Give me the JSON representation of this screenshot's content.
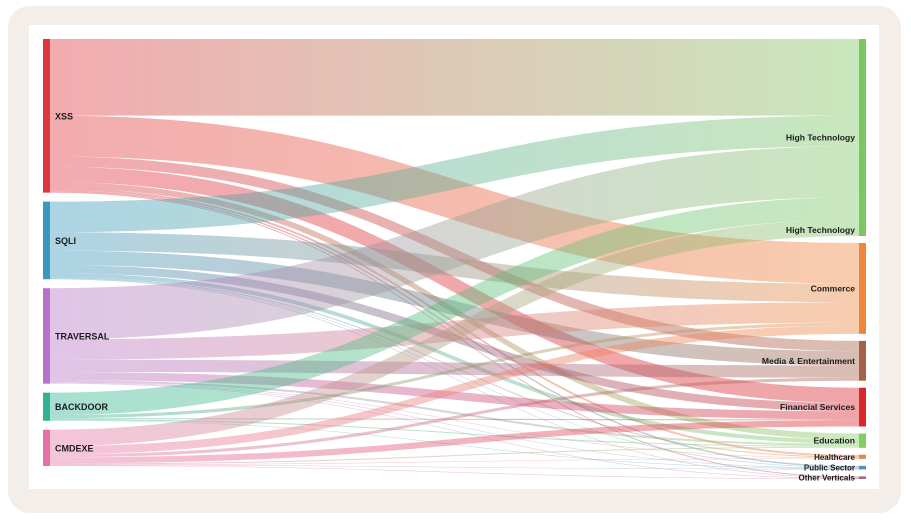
{
  "sankey": {
    "sources": [
      {
        "id": "xss",
        "label": "XSS",
        "color": "#e0373f"
      },
      {
        "id": "sqli",
        "label": "SQLI",
        "color": "#3a98be"
      },
      {
        "id": "traversal",
        "label": "TRAVERSAL",
        "color": "#b873c9"
      },
      {
        "id": "backdoor",
        "label": "BACKDOOR",
        "color": "#2fb393"
      },
      {
        "id": "cmdexe",
        "label": "CMDEXE",
        "color": "#e672a5"
      }
    ],
    "targets": [
      {
        "id": "hightech",
        "label": "High Technology",
        "label2": "High Technology",
        "color": "#7dc762"
      },
      {
        "id": "commerce",
        "label": "Commerce",
        "color": "#ee863e"
      },
      {
        "id": "media",
        "label": "Media & Entertainment",
        "color": "#a46149"
      },
      {
        "id": "financial",
        "label": "Financial Services",
        "color": "#d8282e"
      },
      {
        "id": "education",
        "label": "Education",
        "color": "#83cd64"
      },
      {
        "id": "healthcare",
        "label": "Healthcare",
        "color": "#e7844a"
      },
      {
        "id": "public",
        "label": "Public Sector",
        "color": "#4e95c2"
      },
      {
        "id": "other",
        "label": "Other Verticals",
        "color": "#b05f84"
      }
    ],
    "links": [
      {
        "source": "xss",
        "target": "hightech",
        "value": 75
      },
      {
        "source": "xss",
        "target": "commerce",
        "value": 40
      },
      {
        "source": "xss",
        "target": "financial",
        "value": 15
      },
      {
        "source": "xss",
        "target": "media",
        "value": 10
      },
      {
        "source": "xss",
        "target": "education",
        "value": 6
      },
      {
        "source": "xss",
        "target": "healthcare",
        "value": 2
      },
      {
        "source": "xss",
        "target": "public",
        "value": 1.5
      },
      {
        "source": "xss",
        "target": "other",
        "value": 1
      },
      {
        "source": "sqli",
        "target": "hightech",
        "value": 30
      },
      {
        "source": "sqli",
        "target": "commerce",
        "value": 18
      },
      {
        "source": "sqli",
        "target": "media",
        "value": 14
      },
      {
        "source": "sqli",
        "target": "financial",
        "value": 8
      },
      {
        "source": "sqli",
        "target": "education",
        "value": 4
      },
      {
        "source": "sqli",
        "target": "healthcare",
        "value": 1
      },
      {
        "source": "sqli",
        "target": "public",
        "value": 0.5
      },
      {
        "source": "sqli",
        "target": "other",
        "value": 0.5
      },
      {
        "source": "traversal",
        "target": "hightech",
        "value": 50
      },
      {
        "source": "traversal",
        "target": "commerce",
        "value": 20
      },
      {
        "source": "traversal",
        "target": "media",
        "value": 12
      },
      {
        "source": "traversal",
        "target": "financial",
        "value": 8
      },
      {
        "source": "traversal",
        "target": "education",
        "value": 2
      },
      {
        "source": "traversal",
        "target": "healthcare",
        "value": 0.5
      },
      {
        "source": "traversal",
        "target": "public",
        "value": 0.5
      },
      {
        "source": "traversal",
        "target": "other",
        "value": 0.5
      },
      {
        "source": "backdoor",
        "target": "hightech",
        "value": 22
      },
      {
        "source": "backdoor",
        "target": "commerce",
        "value": 3
      },
      {
        "source": "backdoor",
        "target": "financial",
        "value": 1
      },
      {
        "source": "backdoor",
        "target": "education",
        "value": 1
      },
      {
        "source": "backdoor",
        "target": "public",
        "value": 0.5
      },
      {
        "source": "cmdexe",
        "target": "hightech",
        "value": 16
      },
      {
        "source": "cmdexe",
        "target": "commerce",
        "value": 8
      },
      {
        "source": "cmdexe",
        "target": "financial",
        "value": 6
      },
      {
        "source": "cmdexe",
        "target": "media",
        "value": 3
      },
      {
        "source": "cmdexe",
        "target": "education",
        "value": 1
      },
      {
        "source": "cmdexe",
        "target": "healthcare",
        "value": 0.5
      },
      {
        "source": "cmdexe",
        "target": "public",
        "value": 0.5
      },
      {
        "source": "cmdexe",
        "target": "other",
        "value": 0.5
      }
    ]
  }
}
